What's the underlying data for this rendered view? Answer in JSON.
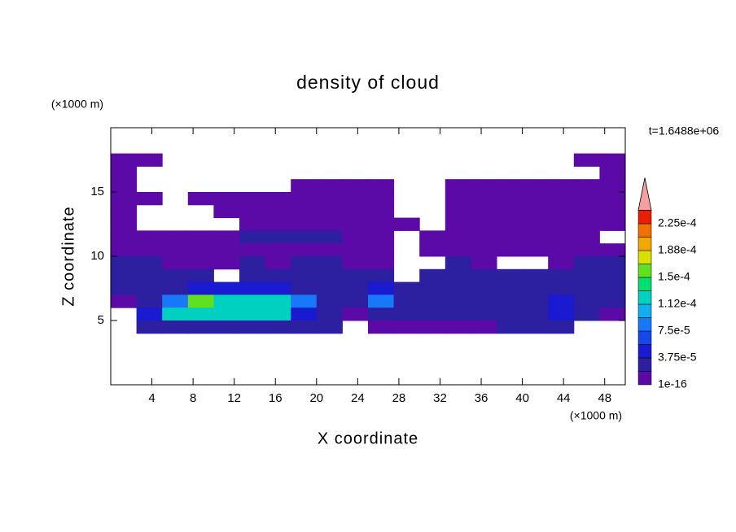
{
  "chart_data": {
    "type": "contour",
    "title": "density of cloud",
    "x_label": "X coordinate",
    "y_label": "Z coordinate",
    "x_unit": "(×1000 m)",
    "y_unit": "(×1000 m)",
    "time_label": "t=1.6488e+06",
    "xlim": [
      0,
      50
    ],
    "ylim": [
      0,
      20
    ],
    "xticks": [
      4,
      8,
      12,
      16,
      20,
      24,
      28,
      32,
      36,
      40,
      44,
      48
    ],
    "yticks": [
      5,
      10,
      15
    ],
    "x": [
      1.25,
      3.75,
      6.25,
      8.75,
      11.25,
      13.75,
      16.25,
      18.75,
      21.25,
      23.75,
      26.25,
      28.75,
      31.25,
      33.75,
      36.25,
      38.75,
      41.25,
      43.75,
      46.25,
      48.75
    ],
    "y": [
      17.5,
      16.5,
      15.5,
      14.5,
      13.5,
      12.5,
      11.5,
      10.5,
      9.5,
      8.5,
      7.5,
      6.5,
      5.5,
      4.5
    ],
    "values": [
      [
        5e-06,
        5e-06,
        null,
        null,
        null,
        null,
        null,
        null,
        null,
        null,
        null,
        null,
        null,
        null,
        null,
        null,
        null,
        null,
        5e-06,
        5e-06
      ],
      [
        5e-06,
        null,
        null,
        null,
        null,
        null,
        null,
        null,
        null,
        null,
        null,
        null,
        null,
        null,
        null,
        null,
        null,
        null,
        null,
        5e-06
      ],
      [
        5e-06,
        null,
        null,
        null,
        null,
        null,
        null,
        5e-06,
        5e-06,
        5e-06,
        5e-06,
        null,
        null,
        5e-06,
        5e-06,
        5e-06,
        5e-06,
        5e-06,
        5e-06,
        5e-06
      ],
      [
        5e-06,
        5e-06,
        null,
        5e-06,
        5e-06,
        5e-06,
        5e-06,
        5e-06,
        5e-06,
        5e-06,
        5e-06,
        null,
        null,
        5e-06,
        5e-06,
        5e-06,
        5e-06,
        5e-06,
        5e-06,
        5e-06
      ],
      [
        5e-06,
        null,
        null,
        null,
        5e-06,
        5e-06,
        5e-06,
        5e-06,
        5e-06,
        5e-06,
        5e-06,
        null,
        null,
        5e-06,
        5e-06,
        5e-06,
        5e-06,
        5e-06,
        5e-06,
        5e-06
      ],
      [
        5e-06,
        null,
        null,
        null,
        null,
        5e-06,
        5e-06,
        5e-06,
        5e-06,
        5e-06,
        5e-06,
        5e-06,
        null,
        5e-06,
        5e-06,
        5e-06,
        5e-06,
        5e-06,
        5e-06,
        5e-06
      ],
      [
        5e-06,
        5e-06,
        5e-06,
        5e-06,
        5e-06,
        2.5e-05,
        2.5e-05,
        2.5e-05,
        2.5e-05,
        5e-06,
        5e-06,
        null,
        5e-06,
        5e-06,
        5e-06,
        5e-06,
        5e-06,
        5e-06,
        5e-06,
        null
      ],
      [
        5e-06,
        5e-06,
        5e-06,
        5e-06,
        5e-06,
        5e-06,
        5e-06,
        5e-06,
        5e-06,
        5e-06,
        5e-06,
        null,
        5e-06,
        5e-06,
        5e-06,
        5e-06,
        5e-06,
        5e-06,
        5e-06,
        5e-06
      ],
      [
        2.5e-05,
        2.5e-05,
        5e-06,
        5e-06,
        5e-06,
        2.5e-05,
        5e-06,
        2.5e-05,
        2.5e-05,
        5e-06,
        5e-06,
        null,
        null,
        2.5e-05,
        5e-06,
        null,
        null,
        5e-06,
        2.5e-05,
        2.5e-05
      ],
      [
        2.5e-05,
        2.5e-05,
        2.5e-05,
        2.5e-05,
        null,
        2.5e-05,
        2.5e-05,
        2.5e-05,
        2.5e-05,
        2.5e-05,
        2.5e-05,
        null,
        2.5e-05,
        2.5e-05,
        2.5e-05,
        2.5e-05,
        2.5e-05,
        2.5e-05,
        2.5e-05,
        2.5e-05
      ],
      [
        2.5e-05,
        2.5e-05,
        2.5e-05,
        5e-05,
        5e-05,
        5e-05,
        5e-05,
        2.5e-05,
        2.5e-05,
        2.5e-05,
        5e-05,
        2.5e-05,
        2.5e-05,
        2.5e-05,
        2.5e-05,
        2.5e-05,
        2.5e-05,
        2.5e-05,
        2.5e-05,
        2.5e-05
      ],
      [
        5e-06,
        2.5e-05,
        8e-05,
        0.00016,
        0.00012,
        0.00012,
        0.00012,
        8e-05,
        2.5e-05,
        2.5e-05,
        8e-05,
        2.5e-05,
        2.5e-05,
        2.5e-05,
        2.5e-05,
        2.5e-05,
        2.5e-05,
        5e-05,
        2.5e-05,
        2.5e-05
      ],
      [
        null,
        5e-05,
        0.00012,
        0.00012,
        0.00012,
        0.00012,
        0.00012,
        5e-05,
        2.5e-05,
        5e-06,
        2.5e-05,
        2.5e-05,
        2.5e-05,
        2.5e-05,
        2.5e-05,
        2.5e-05,
        2.5e-05,
        5e-05,
        2.5e-05,
        5e-06
      ],
      [
        null,
        2.5e-05,
        2.5e-05,
        2.5e-05,
        2.5e-05,
        2.5e-05,
        2.5e-05,
        2.5e-05,
        2.5e-05,
        null,
        5e-06,
        5e-06,
        5e-06,
        5e-06,
        5e-06,
        2.5e-05,
        2.5e-05,
        2.5e-05,
        null,
        null
      ]
    ],
    "colorbar": {
      "levels": [
        1e-16,
        1.875e-05,
        3.75e-05,
        5.625e-05,
        7.5e-05,
        9.375e-05,
        0.0001125,
        0.00013125,
        0.00015,
        0.00016875,
        0.0001875,
        0.00020625,
        0.000225,
        0.00024375
      ],
      "colors": [
        "#5b0aa8",
        "#2c1fa0",
        "#1a1ad0",
        "#1448e8",
        "#1878f8",
        "#10b0f0",
        "#00d0c0",
        "#00e070",
        "#60e020",
        "#d8e000",
        "#f0a800",
        "#f07000",
        "#e82000"
      ],
      "over_color": "#f4a0a0",
      "ticks": [
        1e-16,
        {
          "value": 3.75e-05,
          "label": "3.75e-5"
        },
        {
          "value": 7.5e-05,
          "label": "7.5e-5"
        },
        {
          "value": 0.0001125,
          "label": "1.12e-4"
        },
        {
          "value": 0.00015,
          "label": "1.5e-4"
        },
        {
          "value": 0.0001875,
          "label": "1.88e-4"
        },
        {
          "value": 0.000225,
          "label": "2.25e-4"
        }
      ]
    }
  }
}
